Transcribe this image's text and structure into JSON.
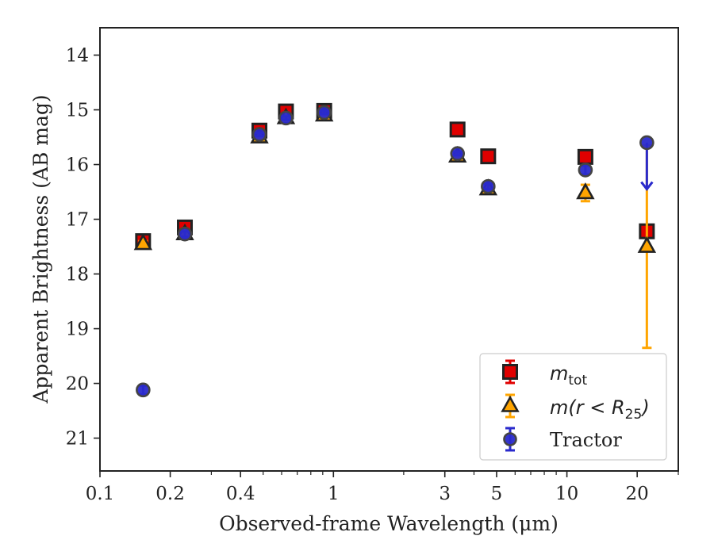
{
  "chart_data": {
    "type": "scatter",
    "xlabel": "Observed-frame Wavelength (μm)",
    "ylabel": "Apparent Brightness (AB mag)",
    "xscale": "log",
    "xlim": [
      0.1,
      30
    ],
    "ylim": [
      21.6,
      13.5
    ],
    "y_inverted": true,
    "x_ticks": [
      0.1,
      0.2,
      0.4,
      1,
      3,
      5,
      10,
      20
    ],
    "x_tick_labels": [
      "0.1",
      "0.2",
      "0.4",
      "1",
      "3",
      "5",
      "10",
      "20"
    ],
    "y_ticks": [
      14,
      15,
      16,
      17,
      18,
      19,
      20,
      21
    ],
    "y_tick_labels": [
      "14",
      "15",
      "16",
      "17",
      "18",
      "19",
      "20",
      "21"
    ],
    "grid": false,
    "legend_position": "lower-right",
    "series": [
      {
        "name_main": "m",
        "name_sub": "tot",
        "marker": "square",
        "color": "#e00000",
        "edge": "#222222",
        "errcolor": "#e00000",
        "x": [
          0.153,
          0.231,
          0.482,
          0.626,
          0.913,
          3.4,
          4.6,
          12,
          22
        ],
        "y": [
          17.4,
          17.15,
          15.38,
          15.03,
          15.02,
          15.36,
          15.85,
          15.86,
          17.22
        ],
        "yerr": [
          0.05,
          0.05,
          0.03,
          0.03,
          0.03,
          0.03,
          0.03,
          0.05,
          0.1
        ]
      },
      {
        "name_main": "m",
        "name_paren": "(r < R",
        "name_sub": "25",
        "name_close": ")",
        "marker": "triangle",
        "color": "#ffa500",
        "edge": "#222222",
        "errcolor": "#ffa500",
        "x": [
          0.153,
          0.231,
          0.482,
          0.626,
          0.913,
          3.4,
          4.6,
          12,
          22
        ],
        "y": [
          17.45,
          17.27,
          15.5,
          15.15,
          15.1,
          15.85,
          16.45,
          16.52,
          17.5
        ],
        "yerr": [
          0.05,
          0.05,
          0.03,
          0.03,
          0.03,
          0.03,
          0.05,
          0.15,
          1.85
        ]
      },
      {
        "name": "Tractor",
        "marker": "circle",
        "color": "#2a2acc",
        "edge": "#444444",
        "errcolor": "#2a2acc",
        "x": [
          0.153,
          0.231,
          0.482,
          0.626,
          0.913,
          3.4,
          4.6,
          12,
          22
        ],
        "y": [
          20.12,
          17.27,
          15.45,
          15.15,
          15.05,
          15.8,
          16.4,
          16.1,
          15.6
        ],
        "yerr": [
          0.08,
          0.05,
          0.03,
          0.03,
          0.03,
          0.03,
          0.05,
          0.08,
          0
        ],
        "upper_limit_index": 8,
        "upper_limit_to": 16.45
      }
    ]
  }
}
